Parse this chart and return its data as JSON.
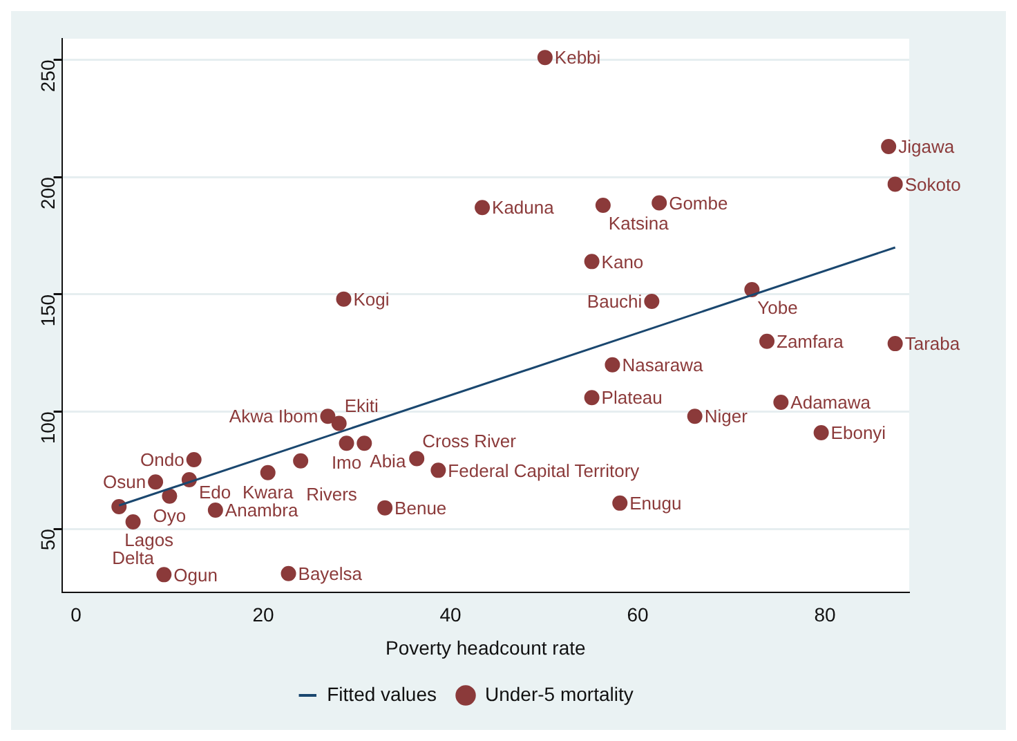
{
  "chart_data": {
    "type": "scatter",
    "xlabel": "Poverty headcount rate",
    "xlim": [
      -1.5,
      89
    ],
    "xticks": [
      0,
      20,
      40,
      60,
      80
    ],
    "ylim": [
      23,
      259
    ],
    "yticks": [
      50,
      100,
      150,
      200,
      250
    ],
    "grid": "y",
    "legend": "bottom",
    "series": [
      {
        "name": "Fitted values",
        "type": "line",
        "color": "#1a476f",
        "line_style": "solid",
        "marker": "none",
        "x": [
          4.6,
          87.5
        ],
        "values": [
          60,
          170
        ]
      },
      {
        "name": "Under-5 mortality",
        "type": "scatter",
        "color": "#8b3a3a",
        "marker": "circle",
        "x": [
          50.1,
          86.8,
          87.5,
          87.5,
          43.4,
          56.3,
          62.3,
          55.1,
          61.5,
          72.2,
          73.8,
          28.6,
          57.3,
          55.1,
          66.1,
          75.3,
          79.6,
          58.1,
          38.7,
          36.4,
          33.0,
          30.8,
          28.9,
          26.9,
          28.1,
          24.0,
          20.5,
          12.6,
          8.5,
          12.1,
          10.0,
          14.9,
          4.6,
          6.1,
          9.4,
          22.7
        ],
        "values": [
          251,
          213,
          197,
          129,
          187,
          188,
          189,
          164,
          147,
          152,
          130,
          148,
          120,
          106,
          98,
          104,
          91,
          61,
          75,
          80,
          59,
          86.5,
          86.5,
          98,
          95,
          79,
          74,
          79.5,
          70,
          71,
          64,
          58,
          59.5,
          53,
          30.5,
          31
        ]
      }
    ],
    "annotations": [
      {
        "text": "Kebbi",
        "x": 50.1,
        "y": 251
      },
      {
        "text": "Jigawa",
        "x": 86.8,
        "y": 213
      },
      {
        "text": "Sokoto",
        "x": 87.5,
        "y": 197
      },
      {
        "text": "Taraba",
        "x": 87.5,
        "y": 129
      },
      {
        "text": "Kaduna",
        "x": 43.4,
        "y": 187
      },
      {
        "text": "Katsina",
        "x": 56.3,
        "y": 188
      },
      {
        "text": "Gombe",
        "x": 62.3,
        "y": 189
      },
      {
        "text": "Kano",
        "x": 55.1,
        "y": 164
      },
      {
        "text": "Bauchi",
        "x": 61.5,
        "y": 147
      },
      {
        "text": "Yobe",
        "x": 72.2,
        "y": 152
      },
      {
        "text": "Zamfara",
        "x": 73.8,
        "y": 130
      },
      {
        "text": "Kogi",
        "x": 28.6,
        "y": 148
      },
      {
        "text": "Nasarawa",
        "x": 57.3,
        "y": 120
      },
      {
        "text": "Plateau",
        "x": 55.1,
        "y": 106
      },
      {
        "text": "Niger",
        "x": 66.1,
        "y": 98
      },
      {
        "text": "Adamawa",
        "x": 75.3,
        "y": 104
      },
      {
        "text": "Ebonyi",
        "x": 79.6,
        "y": 91
      },
      {
        "text": "Enugu",
        "x": 58.1,
        "y": 61
      },
      {
        "text": "Federal Capital Territory",
        "x": 38.7,
        "y": 75
      },
      {
        "text": "Cross River",
        "x": 36.4,
        "y": 80
      },
      {
        "text": "Benue",
        "x": 33.0,
        "y": 59
      },
      {
        "text": "Abia",
        "x": 30.8,
        "y": 86.5
      },
      {
        "text": "Imo",
        "x": 28.9,
        "y": 86.5
      },
      {
        "text": "Akwa Ibom",
        "x": 26.9,
        "y": 98
      },
      {
        "text": "Ekiti",
        "x": 28.1,
        "y": 95
      },
      {
        "text": "Rivers",
        "x": 24.0,
        "y": 79
      },
      {
        "text": "Kwara",
        "x": 20.5,
        "y": 74
      },
      {
        "text": "Ondo",
        "x": 12.6,
        "y": 79.5
      },
      {
        "text": "Osun",
        "x": 8.5,
        "y": 70
      },
      {
        "text": "Edo",
        "x": 12.1,
        "y": 71
      },
      {
        "text": "Oyo",
        "x": 10.0,
        "y": 64
      },
      {
        "text": "Anambra",
        "x": 14.9,
        "y": 58
      },
      {
        "text": "Lagos",
        "x": 4.6,
        "y": 59.5
      },
      {
        "text": "Delta",
        "x": 6.1,
        "y": 53
      },
      {
        "text": "Ogun",
        "x": 9.4,
        "y": 30.5
      },
      {
        "text": "Bayelsa",
        "x": 22.7,
        "y": 31
      }
    ]
  }
}
